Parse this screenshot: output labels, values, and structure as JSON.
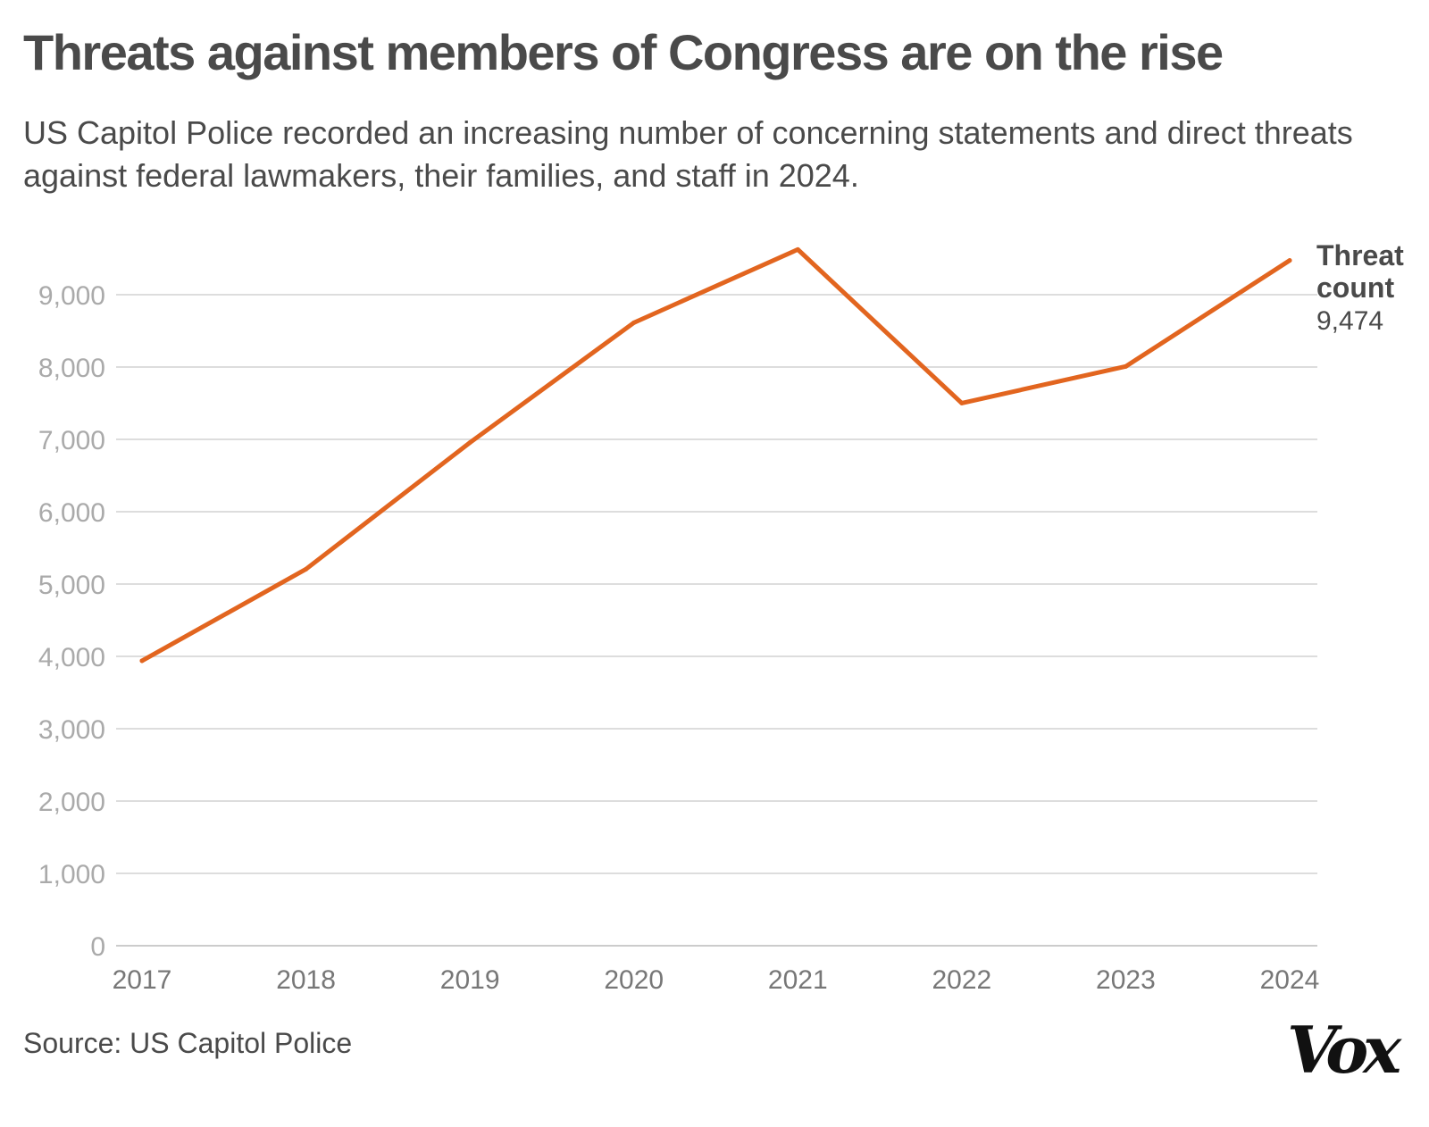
{
  "header": {
    "title": "Threats against members of Congress are on the rise",
    "subtitle": "US Capitol Police recorded an increasing number of concerning statements and direct threats against federal lawmakers, their families, and staff in 2024."
  },
  "footer": {
    "source": "Source: US Capitol Police",
    "logo": "Vox"
  },
  "colors": {
    "line": "#e2651f",
    "grid": "#dddddd",
    "y_tick_text": "#aaaaaa",
    "x_tick_text": "#777777",
    "text": "#4a4a4a"
  },
  "chart_data": {
    "type": "line",
    "title": "",
    "xlabel": "",
    "ylabel": "",
    "x": [
      "2017",
      "2018",
      "2019",
      "2020",
      "2021",
      "2022",
      "2023",
      "2024"
    ],
    "series": [
      {
        "name": "Threat count",
        "values": [
          3939,
          5206,
          6955,
          8613,
          9625,
          7501,
          8008,
          9474
        ]
      }
    ],
    "end_label": {
      "line1": "Threat",
      "line2": "count",
      "value": "9,474"
    },
    "ylim": [
      0,
      9000
    ],
    "y_ticks": [
      0,
      1000,
      2000,
      3000,
      4000,
      5000,
      6000,
      7000,
      8000,
      9000
    ],
    "y_tick_labels": [
      "0",
      "1,000",
      "2,000",
      "3,000",
      "4,000",
      "5,000",
      "6,000",
      "7,000",
      "8,000",
      "9,000"
    ],
    "grid": true,
    "legend": "direct label at line end"
  }
}
